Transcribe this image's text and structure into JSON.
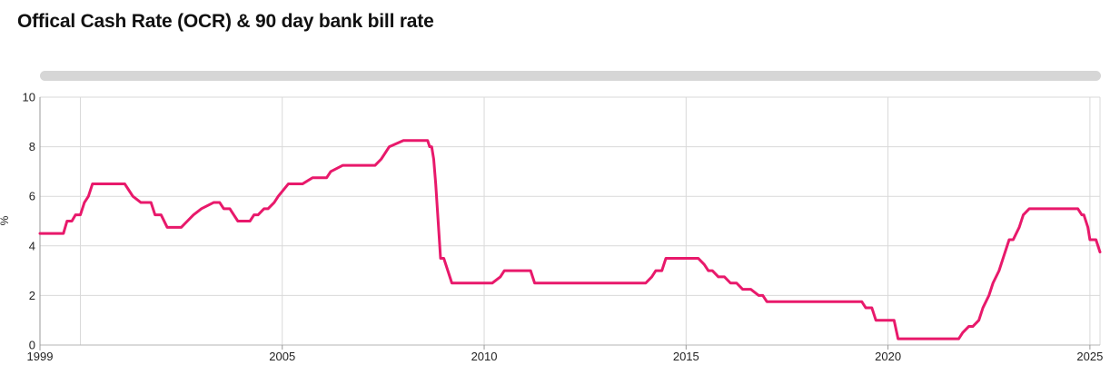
{
  "chart_data": {
    "type": "line",
    "title": "Offical Cash Rate (OCR) & 90 day bank bill rate",
    "ylabel": "%",
    "xlabel": "",
    "xlim": [
      1999.0,
      2025.25
    ],
    "ylim": [
      0,
      10
    ],
    "x_ticks": [
      1999,
      2005,
      2010,
      2015,
      2020,
      2025
    ],
    "y_ticks": [
      0,
      2,
      4,
      6,
      8,
      10
    ],
    "grid": true,
    "legend": "none",
    "series_color": "#e8196b",
    "gridline_color": "#d9d9d9",
    "scrollbar_color": "#d6d6d6",
    "series": [
      {
        "x": [
          1999.0,
          1999.58,
          1999.67,
          1999.79,
          1999.88,
          2000.0,
          2000.1,
          2000.2,
          2000.3,
          2000.4,
          2000.5,
          2001.1,
          2001.2,
          2001.3,
          2001.5,
          2001.75,
          2001.85,
          2002.0,
          2002.15,
          2002.3,
          2002.5,
          2002.65,
          2002.8,
          2003.0,
          2003.3,
          2003.45,
          2003.55,
          2003.7,
          2003.8,
          2003.9,
          2004.05,
          2004.2,
          2004.3,
          2004.4,
          2004.55,
          2004.65,
          2004.8,
          2004.9,
          2005.15,
          2005.3,
          2005.5,
          2005.75,
          2005.9,
          2006.0,
          2006.1,
          2006.2,
          2006.5,
          2006.75,
          2007.0,
          2007.2,
          2007.3,
          2007.45,
          2007.55,
          2007.65,
          2008.0,
          2008.2,
          2008.5,
          2008.6,
          2008.65,
          2008.7,
          2008.75,
          2008.8,
          2008.92,
          2009.0,
          2009.1,
          2009.2,
          2009.3,
          2009.4,
          2009.7,
          2010.0,
          2010.2,
          2010.4,
          2010.5,
          2010.6,
          2010.7,
          2010.85,
          2011.0,
          2011.15,
          2011.25,
          2011.35,
          2011.5,
          2012.0,
          2012.5,
          2013.0,
          2013.5,
          2014.0,
          2014.15,
          2014.25,
          2014.4,
          2014.5,
          2014.6,
          2014.75,
          2015.0,
          2015.3,
          2015.45,
          2015.55,
          2015.65,
          2015.8,
          2015.95,
          2016.1,
          2016.25,
          2016.4,
          2016.5,
          2016.6,
          2016.8,
          2016.9,
          2017.0,
          2017.5,
          2018.0,
          2018.5,
          2019.0,
          2019.35,
          2019.45,
          2019.6,
          2019.7,
          2019.9,
          2020.15,
          2020.25,
          2020.5,
          2021.0,
          2021.5,
          2021.75,
          2021.85,
          2022.0,
          2022.1,
          2022.25,
          2022.35,
          2022.5,
          2022.6,
          2022.75,
          2022.85,
          2023.0,
          2023.1,
          2023.25,
          2023.35,
          2023.5,
          2023.65,
          2023.75,
          2024.0,
          2024.5,
          2024.7,
          2024.8,
          2024.85,
          2024.95,
          2025.0,
          2025.15,
          2025.25
        ],
        "values": [
          4.5,
          4.5,
          5.0,
          5.0,
          5.25,
          5.25,
          5.75,
          6.0,
          6.5,
          6.5,
          6.5,
          6.5,
          6.25,
          6.0,
          5.75,
          5.75,
          5.25,
          5.25,
          4.75,
          4.75,
          4.75,
          5.0,
          5.25,
          5.5,
          5.75,
          5.75,
          5.5,
          5.5,
          5.25,
          5.0,
          5.0,
          5.0,
          5.25,
          5.25,
          5.5,
          5.5,
          5.75,
          6.0,
          6.5,
          6.5,
          6.5,
          6.75,
          6.75,
          6.75,
          6.75,
          7.0,
          7.25,
          7.25,
          7.25,
          7.25,
          7.25,
          7.5,
          7.75,
          8.0,
          8.25,
          8.25,
          8.25,
          8.25,
          8.0,
          8.0,
          7.5,
          6.5,
          3.5,
          3.5,
          3.0,
          2.5,
          2.5,
          2.5,
          2.5,
          2.5,
          2.5,
          2.75,
          3.0,
          3.0,
          3.0,
          3.0,
          3.0,
          3.0,
          2.5,
          2.5,
          2.5,
          2.5,
          2.5,
          2.5,
          2.5,
          2.5,
          2.75,
          3.0,
          3.0,
          3.5,
          3.5,
          3.5,
          3.5,
          3.5,
          3.25,
          3.0,
          3.0,
          2.75,
          2.75,
          2.5,
          2.5,
          2.25,
          2.25,
          2.25,
          2.0,
          2.0,
          1.75,
          1.75,
          1.75,
          1.75,
          1.75,
          1.75,
          1.5,
          1.5,
          1.0,
          1.0,
          1.0,
          0.25,
          0.25,
          0.25,
          0.25,
          0.25,
          0.5,
          0.75,
          0.75,
          1.0,
          1.5,
          2.0,
          2.5,
          3.0,
          3.5,
          4.25,
          4.25,
          4.75,
          5.25,
          5.5,
          5.5,
          5.5,
          5.5,
          5.5,
          5.5,
          5.25,
          5.25,
          4.75,
          4.25,
          4.25,
          3.75
        ]
      }
    ]
  }
}
